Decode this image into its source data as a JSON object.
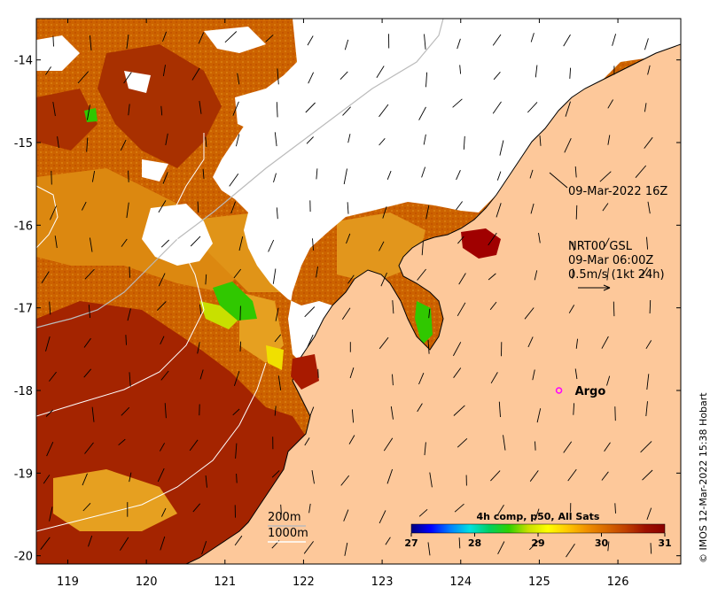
{
  "map": {
    "x_ticks": [
      "119",
      "120",
      "121",
      "122",
      "123",
      "124",
      "125",
      "126"
    ],
    "y_ticks": [
      "-14",
      "-15",
      "-16",
      "-17",
      "-18",
      "-19",
      "-20"
    ],
    "lon_range": [
      118.6,
      126.8
    ],
    "lat_range": [
      -20.1,
      -13.5
    ]
  },
  "annotations": {
    "ice_time": "09-Mar-2022 16Z",
    "current_source": "NRT00 GSL",
    "current_time": "09-Mar 06:00Z",
    "current_scale": "0.5m/s (1kt 24h)",
    "contour_200": "200m",
    "contour_1000": "1000m"
  },
  "argo": {
    "label": "Argo",
    "lon": 125.25,
    "lat": -18.0
  },
  "colorbar": {
    "title": "4h comp, p50, All Sats",
    "ticks": [
      "27",
      "28",
      "29",
      "30",
      "31"
    ],
    "stops": [
      "#00007f",
      "#0000ff",
      "#0080ff",
      "#00e0e0",
      "#00d060",
      "#30d000",
      "#c8e000",
      "#ffff00",
      "#ffc800",
      "#f09000",
      "#d86800",
      "#c04000",
      "#9e1000",
      "#8b0000"
    ]
  },
  "credit": "© IMOS 12-Mar-2022 15:38 Hobart",
  "colors": {
    "land": "#fdc89a",
    "sst_dark": "#a02000",
    "sst_mid": "#c85a00",
    "sst_light": "#e08c10",
    "sst_yellow": "#f0b400",
    "sst_green": "#30d000",
    "cloud": "#ffffff"
  }
}
